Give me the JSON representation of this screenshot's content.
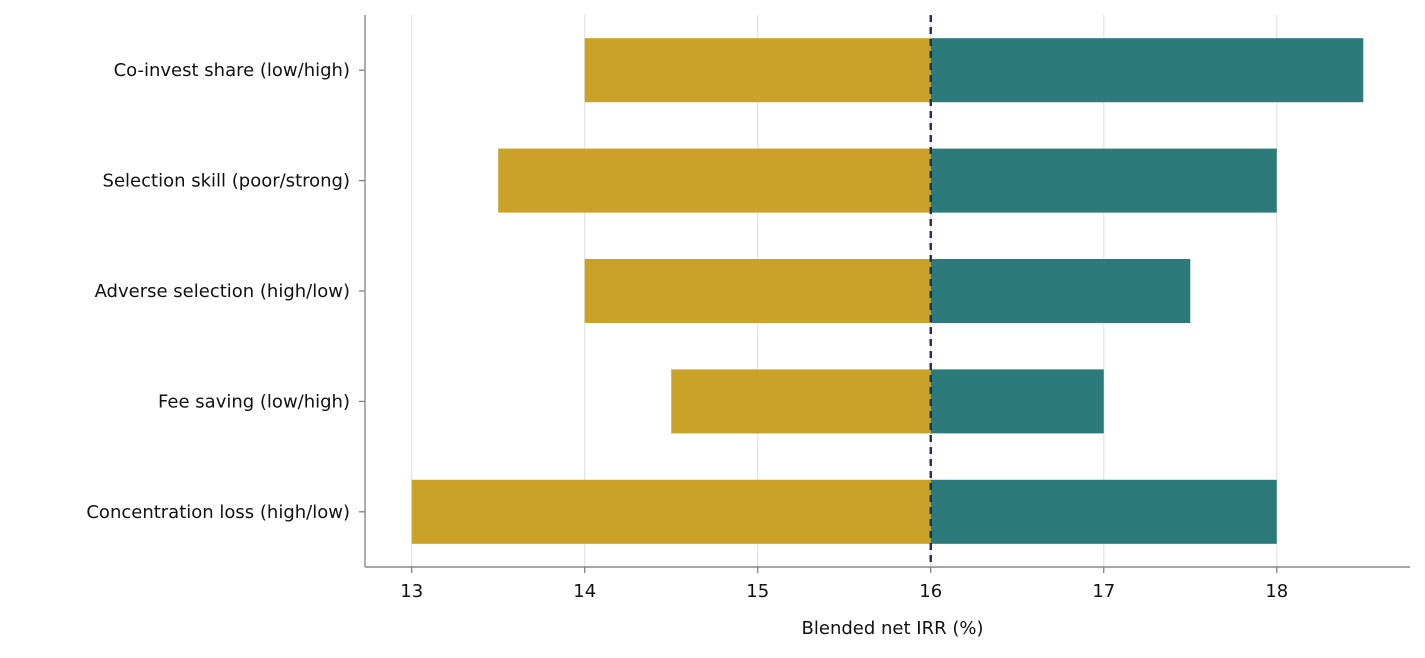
{
  "chart_data": {
    "type": "bar",
    "orientation": "horizontal",
    "subtype": "tornado",
    "title": "",
    "xlabel": "Blended net IRR (%)",
    "ylabel": "",
    "base_value": 16,
    "xlim": [
      12.73,
      18.77
    ],
    "xticks": [
      13,
      14,
      15,
      16,
      17,
      18
    ],
    "grid": "vertical",
    "legend": "none",
    "categories": [
      "Co-invest share (low/high)",
      "Selection skill (poor/strong)",
      "Adverse selection (high/low)",
      "Fee saving (low/high)",
      "Concentration loss (high/low)"
    ],
    "series": [
      {
        "values": [
          14.0,
          13.5,
          14.0,
          14.5,
          13.0
        ],
        "color": "#C9A227"
      },
      {
        "values": [
          18.5,
          18.0,
          17.5,
          17.0,
          18.0
        ],
        "color": "#2D7A7B"
      }
    ],
    "base_line_color": "#1F2D5A"
  }
}
